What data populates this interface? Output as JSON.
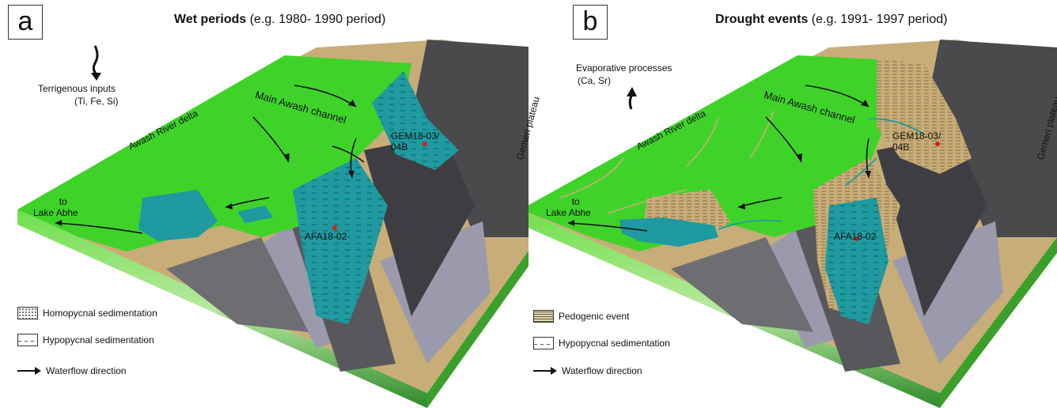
{
  "panel_a": {
    "letter": "a",
    "title_bold": "Wet periods",
    "title_rest": " (e.g. 1980- 1990 period)",
    "note_line1": "Terrigenous inputs",
    "note_line2": "(Ti, Fe, Si)",
    "labels": {
      "delta": "Awash River delta",
      "channel": "Main Awash channel",
      "plateau": "Gemeri plateau",
      "core1_l1": "GEM18-03/",
      "core1_l2": "04B",
      "core2": "AFA18-02",
      "lake_l1": "to",
      "lake_l2": "Lake Abhe"
    },
    "legend": {
      "item1": "Homopycnal sedimentation",
      "item2": "Hypopycnal sedimentation",
      "item3": "Waterflow direction"
    }
  },
  "panel_b": {
    "letter": "b",
    "title_bold": "Drought events",
    "title_rest": " (e.g. 1991- 1997 period)",
    "note_line1": "Evaporative processes",
    "note_line2": "(Ca, Sr)",
    "labels": {
      "delta": "Awash River delta",
      "channel": "Main Awash channel",
      "plateau": "Gemeri plateau",
      "core1_l1": "GEM18-03/",
      "core1_l2": "04B",
      "core2": "AFA18-02",
      "lake_l1": "to",
      "lake_l2": "Lake Abhe"
    },
    "legend": {
      "item1": "Pedogenic event",
      "item2": "Hypopycnal sedimentation",
      "item3": "Waterflow direction"
    }
  },
  "colors": {
    "vegetation": "#3fd32a",
    "water": "#1e9aa0",
    "sediment": "#c8ad78",
    "rock_dark": "#4a4a4d",
    "rock_light": "#9a9aac",
    "core_point": "#d81e1e"
  }
}
